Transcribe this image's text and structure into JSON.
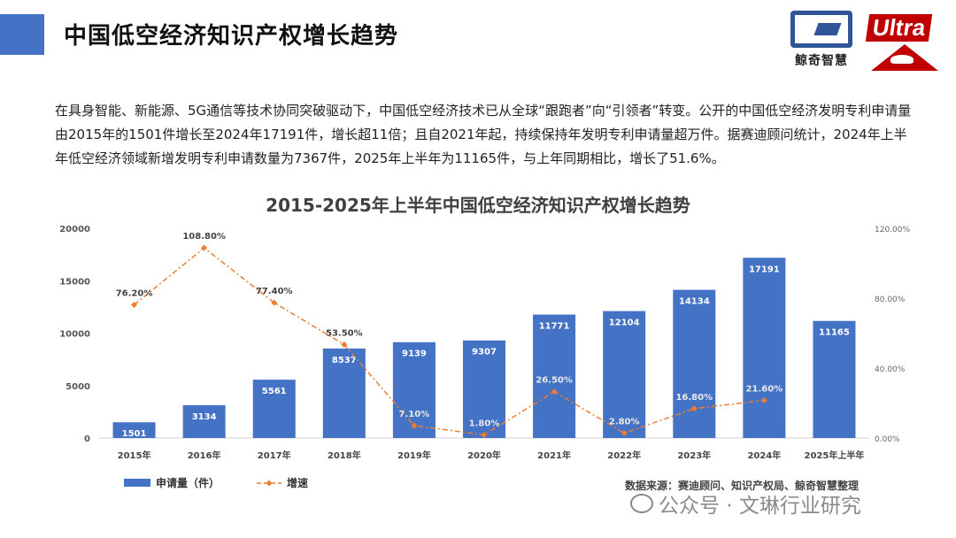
{
  "page": {
    "title": "中国低空经济知识产权增长趋势",
    "intro": "在具身智能、新能源、5G通信等技术协同突破驱动下，中国低空经济技术已从全球“跟跑者”向“引领者”转变。公开的中国低空经济发明专利申请量由2015年的1501件增长至2024年17191件，增长超11倍；且自2021年起，持续保持年发明专利申请量超万件。据赛迪顾问统计，2024年上半年低空经济领域新增发明专利申请数量为7367件，2025年上半年为11165件，与上年同期相比，增长了51.6%。",
    "logo_text": "鲸奇智慧",
    "ultra_text": "Ultra",
    "source": "数据来源：赛迪顾问、知识产权局、鲸奇智慧整理",
    "watermark": "公众号 · 文琳行业研究"
  },
  "colors": {
    "accent": "#4472c4",
    "bar": "#4472c4",
    "line": "#ed7d31",
    "brand_red": "#c00000",
    "brand_blue": "#2f5597"
  },
  "chart_data": {
    "type": "bar",
    "title": "2015-2025年上半年中国低空经济知识产权增长趋势",
    "categories": [
      "2015年",
      "2016年",
      "2017年",
      "2018年",
      "2019年",
      "2020年",
      "2021年",
      "2022年",
      "2023年",
      "2024年",
      "2025年上半年"
    ],
    "series": [
      {
        "name": "申请量（件）",
        "type": "bar",
        "axis": "left",
        "values": [
          1501,
          3134,
          5561,
          8537,
          9139,
          9307,
          11771,
          12104,
          14134,
          17191,
          11165
        ],
        "labels": [
          "1501",
          "3134",
          "5561",
          "8537",
          "9139",
          "9307",
          "11771",
          "12104",
          "14134",
          "17191",
          "11165"
        ]
      },
      {
        "name": "增速",
        "type": "line",
        "axis": "right",
        "values": [
          76.2,
          108.8,
          77.4,
          53.5,
          7.1,
          1.8,
          26.5,
          2.8,
          16.8,
          21.6,
          null
        ],
        "labels": [
          "76.20%",
          "108.80%",
          "77.40%",
          "53.50%",
          "7.10%",
          "1.80%",
          "26.50%",
          "2.80%",
          "16.80%",
          "21.60%",
          ""
        ]
      }
    ],
    "y_left": {
      "min": 0,
      "max": 20000,
      "ticks": [
        "0",
        "5000",
        "10000",
        "15000",
        "20000"
      ]
    },
    "y_right": {
      "min": 0,
      "max": 120,
      "ticks": [
        "0.00%",
        "40.00%",
        "80.00%",
        "120.00%"
      ]
    },
    "grid": false,
    "legend_position": "bottom-left"
  }
}
